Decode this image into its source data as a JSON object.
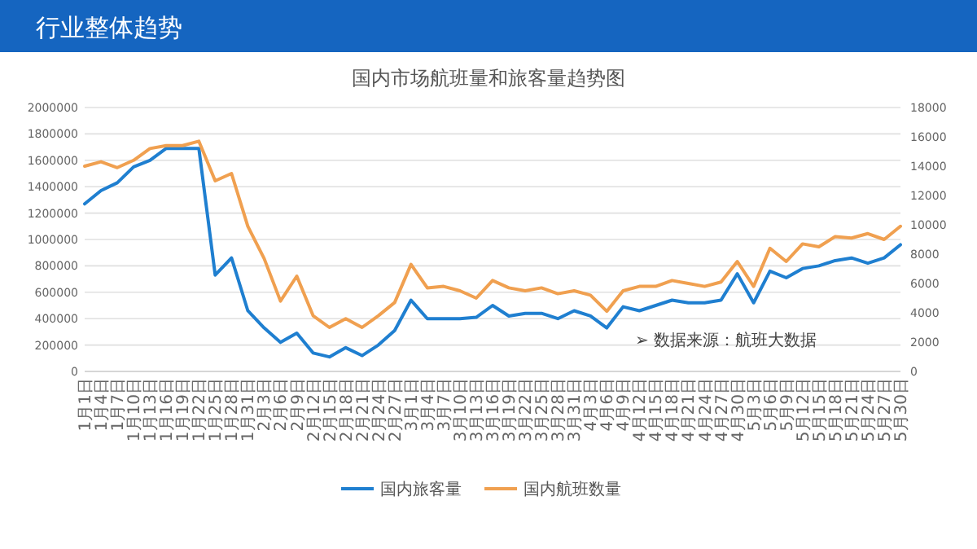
{
  "chart_data": {
    "type": "line",
    "title": "行业整体趋势",
    "subtitle": "国内市场航班量和旅客量趋势图",
    "categories": [
      "1月1日",
      "1月4日",
      "1月7日",
      "1月10日",
      "1月13日",
      "1月16日",
      "1月19日",
      "1月22日",
      "1月25日",
      "1月28日",
      "1月31日",
      "2月3日",
      "2月6日",
      "2月9日",
      "2月12日",
      "2月15日",
      "2月18日",
      "2月21日",
      "2月24日",
      "2月27日",
      "3月1日",
      "3月4日",
      "3月7日",
      "3月10日",
      "3月13日",
      "3月16日",
      "3月19日",
      "3月22日",
      "3月25日",
      "3月28日",
      "3月31日",
      "4月3日",
      "4月6日",
      "4月9日",
      "4月12日",
      "4月15日",
      "4月18日",
      "4月21日",
      "4月24日",
      "4月27日",
      "4月30日",
      "5月3日",
      "5月6日",
      "5月9日",
      "5月12日",
      "5月15日",
      "5月18日",
      "5月21日",
      "5月24日",
      "5月27日",
      "5月30日"
    ],
    "series": [
      {
        "name": "国内旅客量",
        "color": "#1f7fd0",
        "values": [
          1270000,
          1370000,
          1430000,
          1550000,
          1600000,
          1690000,
          1690000,
          1690000,
          730000,
          860000,
          460000,
          330000,
          220000,
          290000,
          140000,
          110000,
          180000,
          120000,
          200000,
          310000,
          540000,
          400000,
          400000,
          400000,
          410000,
          500000,
          420000,
          440000,
          440000,
          400000,
          460000,
          420000,
          330000,
          490000,
          460000,
          500000,
          540000,
          520000,
          520000,
          540000,
          740000,
          520000,
          760000,
          710000,
          780000,
          800000,
          840000,
          860000,
          820000,
          860000,
          960000
        ]
      },
      {
        "name": "国内航班数量",
        "color": "#f0a050",
        "axis": "y2",
        "values": [
          14000,
          14300,
          13900,
          14400,
          15200,
          15400,
          15400,
          15700,
          13000,
          13500,
          9900,
          7700,
          4800,
          6500,
          3800,
          3000,
          3600,
          3000,
          3800,
          4700,
          7300,
          5700,
          5800,
          5500,
          5000,
          6200,
          5700,
          5500,
          5700,
          5300,
          5500,
          5200,
          4100,
          5500,
          5800,
          5800,
          6200,
          6000,
          5800,
          6100,
          7500,
          5800,
          8400,
          7500,
          8700,
          8500,
          9200,
          9100,
          9400,
          9000,
          9900
        ]
      }
    ],
    "ylim": [
      0,
      2000000
    ],
    "yticks": [
      0,
      200000,
      400000,
      600000,
      800000,
      1000000,
      1200000,
      1400000,
      1600000,
      1800000,
      2000000
    ],
    "y2lim": [
      0,
      18000
    ],
    "y2ticks": [
      0,
      2000,
      4000,
      6000,
      8000,
      10000,
      12000,
      14000,
      16000,
      18000
    ],
    "grid": "y",
    "legend": "bottom",
    "marker": "none",
    "line_style": "solid",
    "annotations": [
      "➢ 数据来源：航班大数据"
    ]
  }
}
